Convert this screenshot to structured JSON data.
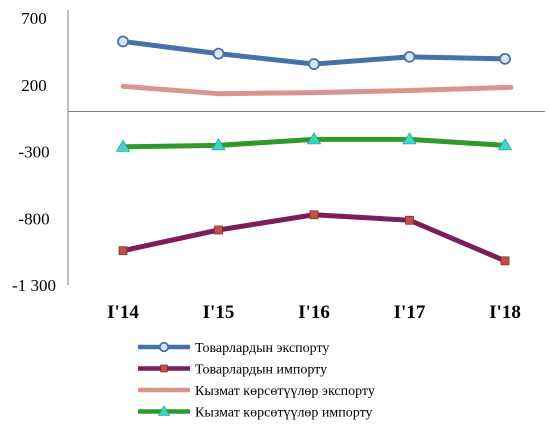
{
  "chart_data": {
    "type": "line",
    "categories": [
      "I'14",
      "I'15",
      "I'16",
      "I'17",
      "I'18"
    ],
    "y_ticks": [
      "700",
      "200",
      "-300",
      "-800",
      "-1 300"
    ],
    "y_tick_values": [
      700,
      200,
      -300,
      -800,
      -1300
    ],
    "ylim": [
      -1300,
      700
    ],
    "series": [
      {
        "name": "Товарлардын экспорту",
        "values": [
          524,
          433,
          355,
          409,
          394
        ],
        "color": "#4572A7",
        "marker": "circle"
      },
      {
        "name": "Товарлардын импорту",
        "values": [
          -1043,
          -888,
          -774,
          -815,
          -1119
        ],
        "color": "#7B1F5A",
        "marker": "square"
      },
      {
        "name": "Кызмат көрсөтүүлөр экспорту",
        "values": [
          188,
          133,
          141,
          157,
          181
        ],
        "color": "#D99594",
        "marker": "none"
      },
      {
        "name": "Кызмат көрсөтүүлөр импорту",
        "values": [
          -265,
          -254,
          -209,
          -209,
          -254
        ],
        "color": "#2E9A2E",
        "marker": "triangle"
      }
    ],
    "title": "",
    "xlabel": "",
    "ylabel": "",
    "grid": false,
    "legend_position": "bottom-center"
  }
}
